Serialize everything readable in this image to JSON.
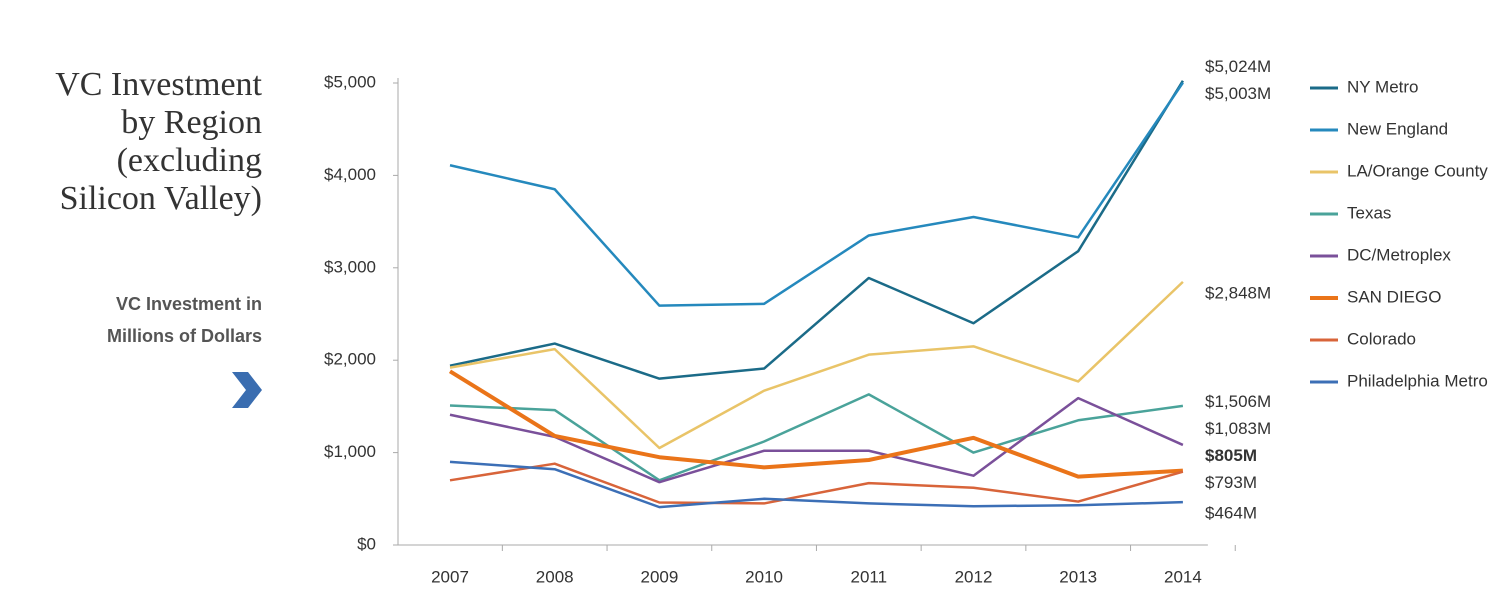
{
  "chart_data": {
    "type": "line",
    "title": "VC Investment by Region (excluding Silicon Valley)",
    "subtitle": "VC Investment in Millions of Dollars",
    "categories": [
      "2007",
      "2008",
      "2009",
      "2010",
      "2011",
      "2012",
      "2013",
      "2014"
    ],
    "ylim": [
      0,
      5000
    ],
    "yticks": [
      {
        "value": 0,
        "label": "$0"
      },
      {
        "value": 1000,
        "label": "$1,000"
      },
      {
        "value": 2000,
        "label": "$2,000"
      },
      {
        "value": 3000,
        "label": "$3,000"
      },
      {
        "value": 4000,
        "label": "$4,000"
      },
      {
        "value": 5000,
        "label": "$5,000"
      }
    ],
    "legend": "right",
    "series": [
      {
        "name": "NY Metro",
        "color": "#1b6b88",
        "values": [
          1940,
          2180,
          1800,
          1910,
          2890,
          2400,
          3180,
          5024
        ],
        "value_labels": [
          null,
          null,
          null,
          null,
          null,
          null,
          null,
          "$5,024M"
        ]
      },
      {
        "name": "New England",
        "color": "#2589bd",
        "values": [
          4110,
          3850,
          2590,
          2610,
          3350,
          3550,
          3330,
          5003
        ],
        "value_labels": [
          null,
          null,
          null,
          null,
          null,
          null,
          null,
          "$5,003M"
        ]
      },
      {
        "name": "LA/Orange County",
        "color": "#e9c468",
        "values": [
          1920,
          2120,
          1050,
          1670,
          2060,
          2150,
          1770,
          2848
        ],
        "value_labels": [
          null,
          null,
          null,
          null,
          null,
          null,
          null,
          "$2,848M"
        ]
      },
      {
        "name": "Texas",
        "color": "#4aa39a",
        "values": [
          1510,
          1460,
          700,
          1120,
          1630,
          1000,
          1350,
          1506
        ],
        "value_labels": [
          null,
          null,
          null,
          null,
          null,
          null,
          null,
          "$1,506M"
        ]
      },
      {
        "name": "DC/Metroplex",
        "color": "#7a509a",
        "values": [
          1410,
          1170,
          680,
          1020,
          1020,
          750,
          1590,
          1083
        ],
        "value_labels": [
          null,
          null,
          null,
          null,
          null,
          null,
          null,
          "$1,083M"
        ]
      },
      {
        "name": "SAN DIEGO",
        "color": "#ea7419",
        "values": [
          1880,
          1180,
          950,
          840,
          920,
          1160,
          740,
          805
        ],
        "value_labels": [
          null,
          null,
          null,
          null,
          null,
          null,
          null,
          "$805M"
        ],
        "highlight": true
      },
      {
        "name": "Colorado",
        "color": "#d8643a",
        "values": [
          700,
          880,
          460,
          450,
          670,
          620,
          470,
          793
        ],
        "value_labels": [
          null,
          null,
          null,
          null,
          null,
          null,
          null,
          "$793M"
        ]
      },
      {
        "name": "Philadelphia Metro",
        "color": "#3c6fb6",
        "values": [
          900,
          820,
          410,
          500,
          450,
          420,
          430,
          464
        ],
        "value_labels": [
          null,
          null,
          null,
          null,
          null,
          null,
          null,
          "$464M"
        ]
      }
    ]
  }
}
